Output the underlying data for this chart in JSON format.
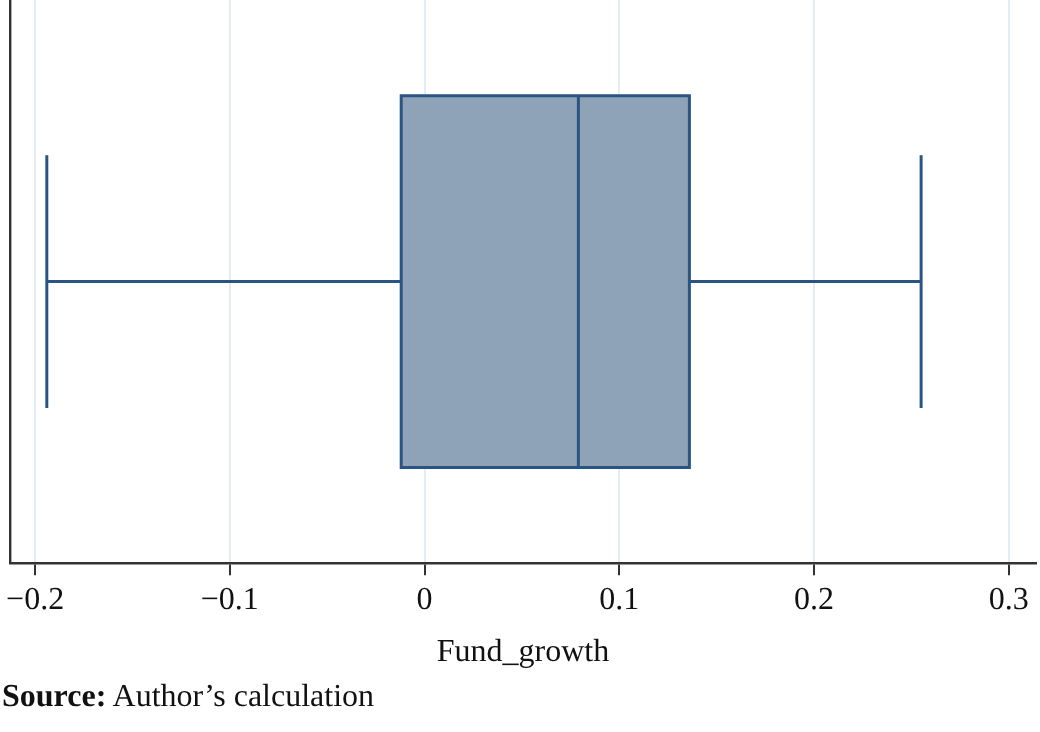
{
  "chart_data": {
    "type": "box",
    "orientation": "horizontal",
    "categories": [
      null
    ],
    "boxes": [
      {
        "low": -0.194,
        "q1": -0.012,
        "median": 0.079,
        "q3": 0.136,
        "high": 0.255
      }
    ],
    "color": "#8fa3b8",
    "xlabel": "Fund_growth",
    "xlim": [
      -0.213,
      0.314
    ],
    "xticks": [
      {
        "value": -0.2,
        "label": "−0.2"
      },
      {
        "value": -0.1,
        "label": "−0.1"
      },
      0,
      0.1,
      0.2,
      0.3
    ],
    "grid": "x",
    "annotations": [
      "Source: Author’s calculation"
    ]
  }
}
